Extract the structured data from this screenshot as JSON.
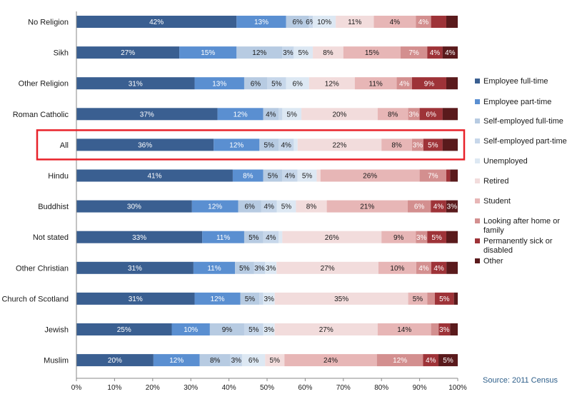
{
  "chart_data": {
    "type": "bar",
    "orientation": "horizontal",
    "stacked": "percent",
    "categories": [
      "No Religion",
      "Sikh",
      "Other Religion",
      "Roman Catholic",
      "All",
      "Hindu",
      "Buddhist",
      "Not stated",
      "Other Christian",
      "Church of Scotland",
      "Jewish",
      "Muslim"
    ],
    "highlighted_category": "All",
    "series": [
      {
        "name": "Employee full-time",
        "color": "#3a5f91",
        "values": [
          42,
          27,
          31,
          37,
          36,
          41,
          30,
          33,
          31,
          31,
          25,
          20
        ]
      },
      {
        "name": "Employee part-time",
        "color": "#5a8fd1",
        "values": [
          13,
          15,
          13,
          12,
          12,
          8,
          12,
          11,
          11,
          12,
          10,
          12
        ]
      },
      {
        "name": "Self-employed full-time",
        "color": "#b7cbe2",
        "values": [
          6,
          12,
          6,
          4,
          5,
          5,
          6,
          5,
          5,
          5,
          9,
          8
        ]
      },
      {
        "name": "Self-employed part-time",
        "color": "#c7d7ea",
        "values": [
          1,
          3,
          5,
          1,
          4,
          4,
          4,
          4,
          3,
          1,
          5,
          3
        ]
      },
      {
        "name": "Unemployed",
        "color": "#dde8f3",
        "values": [
          6,
          5,
          6,
          5,
          1,
          5,
          5,
          1,
          3,
          3,
          3,
          6
        ]
      },
      {
        "name": "Retired",
        "color": "#f2dcdc",
        "values": [
          10,
          8,
          12,
          20,
          22,
          1,
          8,
          26,
          27,
          35,
          27,
          5
        ]
      },
      {
        "name": "Student",
        "color": "#e7b6b6",
        "values": [
          11,
          15,
          11,
          8,
          8,
          26,
          21,
          9,
          10,
          5,
          14,
          24
        ]
      },
      {
        "name": "Looking after home or family",
        "color": "#d38f8f",
        "values": [
          4,
          7,
          4,
          3,
          3,
          7,
          6,
          3,
          4,
          2,
          2,
          12
        ]
      },
      {
        "name": "Permanently sick or disabled",
        "color": "#9e3338",
        "values": [
          4,
          4,
          9,
          6,
          5,
          1,
          4,
          5,
          4,
          5,
          3,
          4
        ]
      },
      {
        "name": "Other",
        "color": "#5a1a1c",
        "values": [
          3,
          4,
          3,
          4,
          4,
          2,
          3,
          3,
          3,
          1,
          2,
          5
        ]
      }
    ],
    "labels": [
      [
        "42%",
        "13%",
        "6%",
        "6%",
        "10%",
        "11%",
        "4%",
        "4%",
        "",
        ""
      ],
      [
        "27%",
        "15%",
        "12%",
        "3%",
        "5%",
        "8%",
        "15%",
        "7%",
        "4%",
        "4%"
      ],
      [
        "31%",
        "13%",
        "6%",
        "5%",
        "6%",
        "12%",
        "11%",
        "4%",
        "9%",
        ""
      ],
      [
        "37%",
        "12%",
        "4%",
        "",
        "5%",
        "20%",
        "8%",
        "3%",
        "6%",
        ""
      ],
      [
        "36%",
        "12%",
        "5%",
        "4%",
        "",
        "22%",
        "8%",
        "3%",
        "5%",
        ""
      ],
      [
        "41%",
        "8%",
        "5%",
        "4%",
        "5%",
        "",
        "26%",
        "7%",
        "",
        ""
      ],
      [
        "30%",
        "12%",
        "6%",
        "4%",
        "5%",
        "8%",
        "21%",
        "6%",
        "4%",
        "3%"
      ],
      [
        "33%",
        "11%",
        "5%",
        "4%",
        "",
        "26%",
        "9%",
        "3%",
        "5%",
        ""
      ],
      [
        "31%",
        "11%",
        "5%",
        "3%",
        "3%",
        "27%",
        "10%",
        "4%",
        "4%",
        ""
      ],
      [
        "31%",
        "12%",
        "5%",
        "",
        "3%",
        "35%",
        "5%",
        "",
        "5%",
        ""
      ],
      [
        "25%",
        "10%",
        "9%",
        "5%",
        "3%",
        "27%",
        "14%",
        "",
        "3%",
        ""
      ],
      [
        "20%",
        "12%",
        "8%",
        "3%",
        "6%",
        "5%",
        "24%",
        "12%",
        "4%",
        "5%"
      ]
    ],
    "x_ticks": [
      "0%",
      "10%",
      "20%",
      "30%",
      "40%",
      "50%",
      "60%",
      "70%",
      "80%",
      "90%",
      "100%"
    ],
    "xlim": [
      0,
      100
    ],
    "grid": false,
    "legend_position": "right",
    "source": "Source: 2011 Census"
  }
}
